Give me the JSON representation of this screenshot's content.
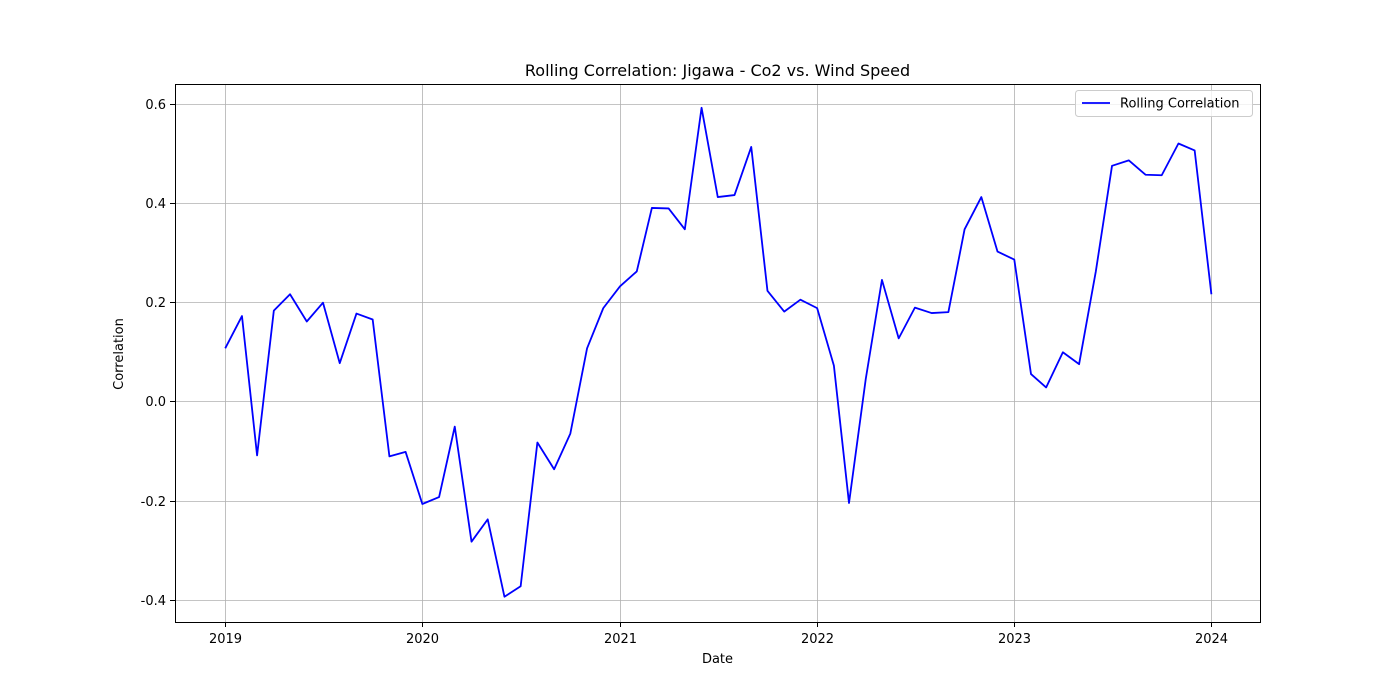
{
  "chart_data": {
    "type": "line",
    "title": "Rolling Correlation: Jigawa - Co2 vs. Wind Speed",
    "xlabel": "Date",
    "ylabel": "Correlation",
    "x_tick_labels": [
      "2019",
      "2020",
      "2021",
      "2022",
      "2023",
      "2024"
    ],
    "y_tick_labels": [
      "-0.4",
      "-0.2",
      "0.0",
      "0.2",
      "0.4",
      "0.6"
    ],
    "y_ticks": [
      -0.4,
      -0.2,
      0.0,
      0.2,
      0.4,
      0.6
    ],
    "xlim": [
      "2018-09-30",
      "2024-03-31"
    ],
    "ylim": [
      -0.445,
      0.64
    ],
    "grid": true,
    "legend_position": "top-right",
    "colors": {
      "line": "#0000ff",
      "grid": "#b0b0b0",
      "axes": "#000000"
    },
    "series": [
      {
        "name": "Rolling Correlation",
        "x": [
          "2019-01-01",
          "2019-02-01",
          "2019-03-01",
          "2019-04-01",
          "2019-05-01",
          "2019-06-01",
          "2019-07-01",
          "2019-08-01",
          "2019-09-01",
          "2019-10-01",
          "2019-11-01",
          "2019-12-01",
          "2020-01-01",
          "2020-02-01",
          "2020-03-01",
          "2020-04-01",
          "2020-05-01",
          "2020-06-01",
          "2020-07-01",
          "2020-08-01",
          "2020-09-01",
          "2020-10-01",
          "2020-11-01",
          "2020-12-01",
          "2021-01-01",
          "2021-02-01",
          "2021-03-01",
          "2021-04-01",
          "2021-05-01",
          "2021-06-01",
          "2021-07-01",
          "2021-08-01",
          "2021-09-01",
          "2021-10-01",
          "2021-11-01",
          "2021-12-01",
          "2022-01-01",
          "2022-02-01",
          "2022-03-01",
          "2022-04-01",
          "2022-05-01",
          "2022-06-01",
          "2022-07-01",
          "2022-08-01",
          "2022-09-01",
          "2022-10-01",
          "2022-11-01",
          "2022-12-01",
          "2023-01-01",
          "2023-02-01",
          "2023-03-01",
          "2023-04-01",
          "2023-05-01",
          "2023-06-01",
          "2023-07-01",
          "2023-08-01",
          "2023-09-01",
          "2023-10-01",
          "2023-11-01",
          "2023-12-01",
          "2024-01-01"
        ],
        "values": [
          0.107,
          0.172,
          -0.109,
          0.183,
          0.216,
          0.161,
          0.199,
          0.077,
          0.177,
          0.165,
          -0.111,
          -0.102,
          -0.207,
          -0.193,
          -0.051,
          -0.283,
          -0.238,
          -0.394,
          -0.373,
          -0.083,
          -0.137,
          -0.065,
          0.107,
          0.188,
          0.232,
          0.262,
          0.39,
          0.389,
          0.347,
          0.592,
          0.412,
          0.416,
          0.513,
          0.223,
          0.181,
          0.205,
          0.188,
          0.072,
          -0.205,
          0.045,
          0.245,
          0.127,
          0.189,
          0.178,
          0.18,
          0.347,
          0.412,
          0.302,
          0.286,
          0.055,
          0.028,
          0.099,
          0.075,
          0.262,
          0.475,
          0.486,
          0.457,
          0.456,
          0.52,
          0.506,
          0.216
        ]
      }
    ]
  }
}
